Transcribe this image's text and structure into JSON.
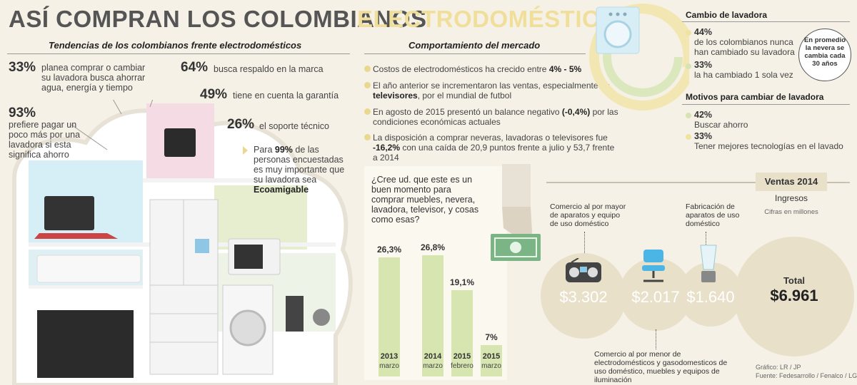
{
  "header": {
    "title_part1": "ASÍ COMPRAN LOS COLOMBIANOS",
    "title_part2": "ELECTRODOMÉSTICOS"
  },
  "trends": {
    "heading": "Tendencias de los colombianos frente electrodomésticos",
    "items": [
      {
        "pct": "33%",
        "text": "planea comprar o cambiar su lavadora busca ahorrar agua, energía y tiempo"
      },
      {
        "pct": "64%",
        "text": "busca respaldo en la marca"
      },
      {
        "pct": "49%",
        "text": "tiene en cuenta la garantía"
      },
      {
        "pct": "93%",
        "text": "prefiere pagar un poco más por una lavadora si esta significa ahorro"
      },
      {
        "pct": "26%",
        "text": "el soporte técnico"
      }
    ],
    "eco": {
      "text_a": "Para",
      "pct": "99%",
      "text_b": "de las personas encuestadas es muy importante que su lavadora sea",
      "bold_word": "Ecoamigable"
    }
  },
  "market": {
    "heading": "Comportamiento del mercado",
    "bullets": [
      {
        "text": "Costos de electrodomésticos ha crecido entre",
        "bold": "4% - 5%",
        "tail": ""
      },
      {
        "text": "El año anterior se incrementaron las ventas, especialmente de",
        "bold": "televisores",
        "tail": ", por el mundial de futbol"
      },
      {
        "text": "En agosto de 2015 presentó un balance negativo",
        "bold": "(-0,4%)",
        "tail": " por las condiciones económicas actuales"
      },
      {
        "text": "La disposición a comprar neveras, lavadoras o televisores fue",
        "bold": "-16,2%",
        "tail": " con una caída de 20,9 puntos frente a julio y 53,7 frente a 2014"
      }
    ]
  },
  "chart_data": {
    "type": "bar",
    "title": "¿Cree ud. que este es un buen momento para comprar muebles, nevera, lavadora, televisor, y cosas como esas?",
    "categories": [
      "2013 marzo",
      "2014 marzo",
      "2015 febrero",
      "2015 marzo"
    ],
    "years": [
      "2013",
      "2014",
      "2015",
      "2015"
    ],
    "months": [
      "marzo",
      "marzo",
      "febrero",
      "marzo"
    ],
    "value_labels": [
      "26,3%",
      "26,8%",
      "19,1%",
      "7%"
    ],
    "values": [
      26.3,
      26.8,
      19.1,
      7
    ],
    "bar_color": "#d7e6b0"
  },
  "washer": {
    "heading": "Cambio de lavadora",
    "items": [
      {
        "pct": "44%",
        "text": "de los colombianos nunca han cambiado su lavadora",
        "color": "#f0e3a0"
      },
      {
        "pct": "33%",
        "text": "la ha cambiado 1 sola vez",
        "color": "#d6e4b4"
      }
    ],
    "note": "En promedio la nevera se cambia cada 30 años"
  },
  "motives": {
    "heading": "Motivos para cambiar de lavadora",
    "items": [
      {
        "pct": "42%",
        "text": "Buscar ahorro",
        "color": "#d6e4b4"
      },
      {
        "pct": "33%",
        "text": "Tener mejores tecnologías en el lavado",
        "color": "#f0e3a0"
      }
    ]
  },
  "sales": {
    "heading": "Ventas 2014",
    "subheading": "Ingresos",
    "units": "Cifras en millones",
    "label_wholesale": "Comercio al por mayor de aparatos y equipo de uso doméstico",
    "label_manufacturing": "Fabricación de aparatos de uso doméstico",
    "label_retail": "Comercio al por menor de electrodomésticos y gasodomesticos de uso doméstico, muebles y equipos de iluminación",
    "values": [
      "$3.302",
      "$2.017",
      "$1.640"
    ],
    "total_label": "Total",
    "total_value": "$6.961"
  },
  "credits": {
    "graphic": "Gráfico: LR / JP",
    "source": "Fuente: Fedesarrollo / Fenalco / LG"
  }
}
